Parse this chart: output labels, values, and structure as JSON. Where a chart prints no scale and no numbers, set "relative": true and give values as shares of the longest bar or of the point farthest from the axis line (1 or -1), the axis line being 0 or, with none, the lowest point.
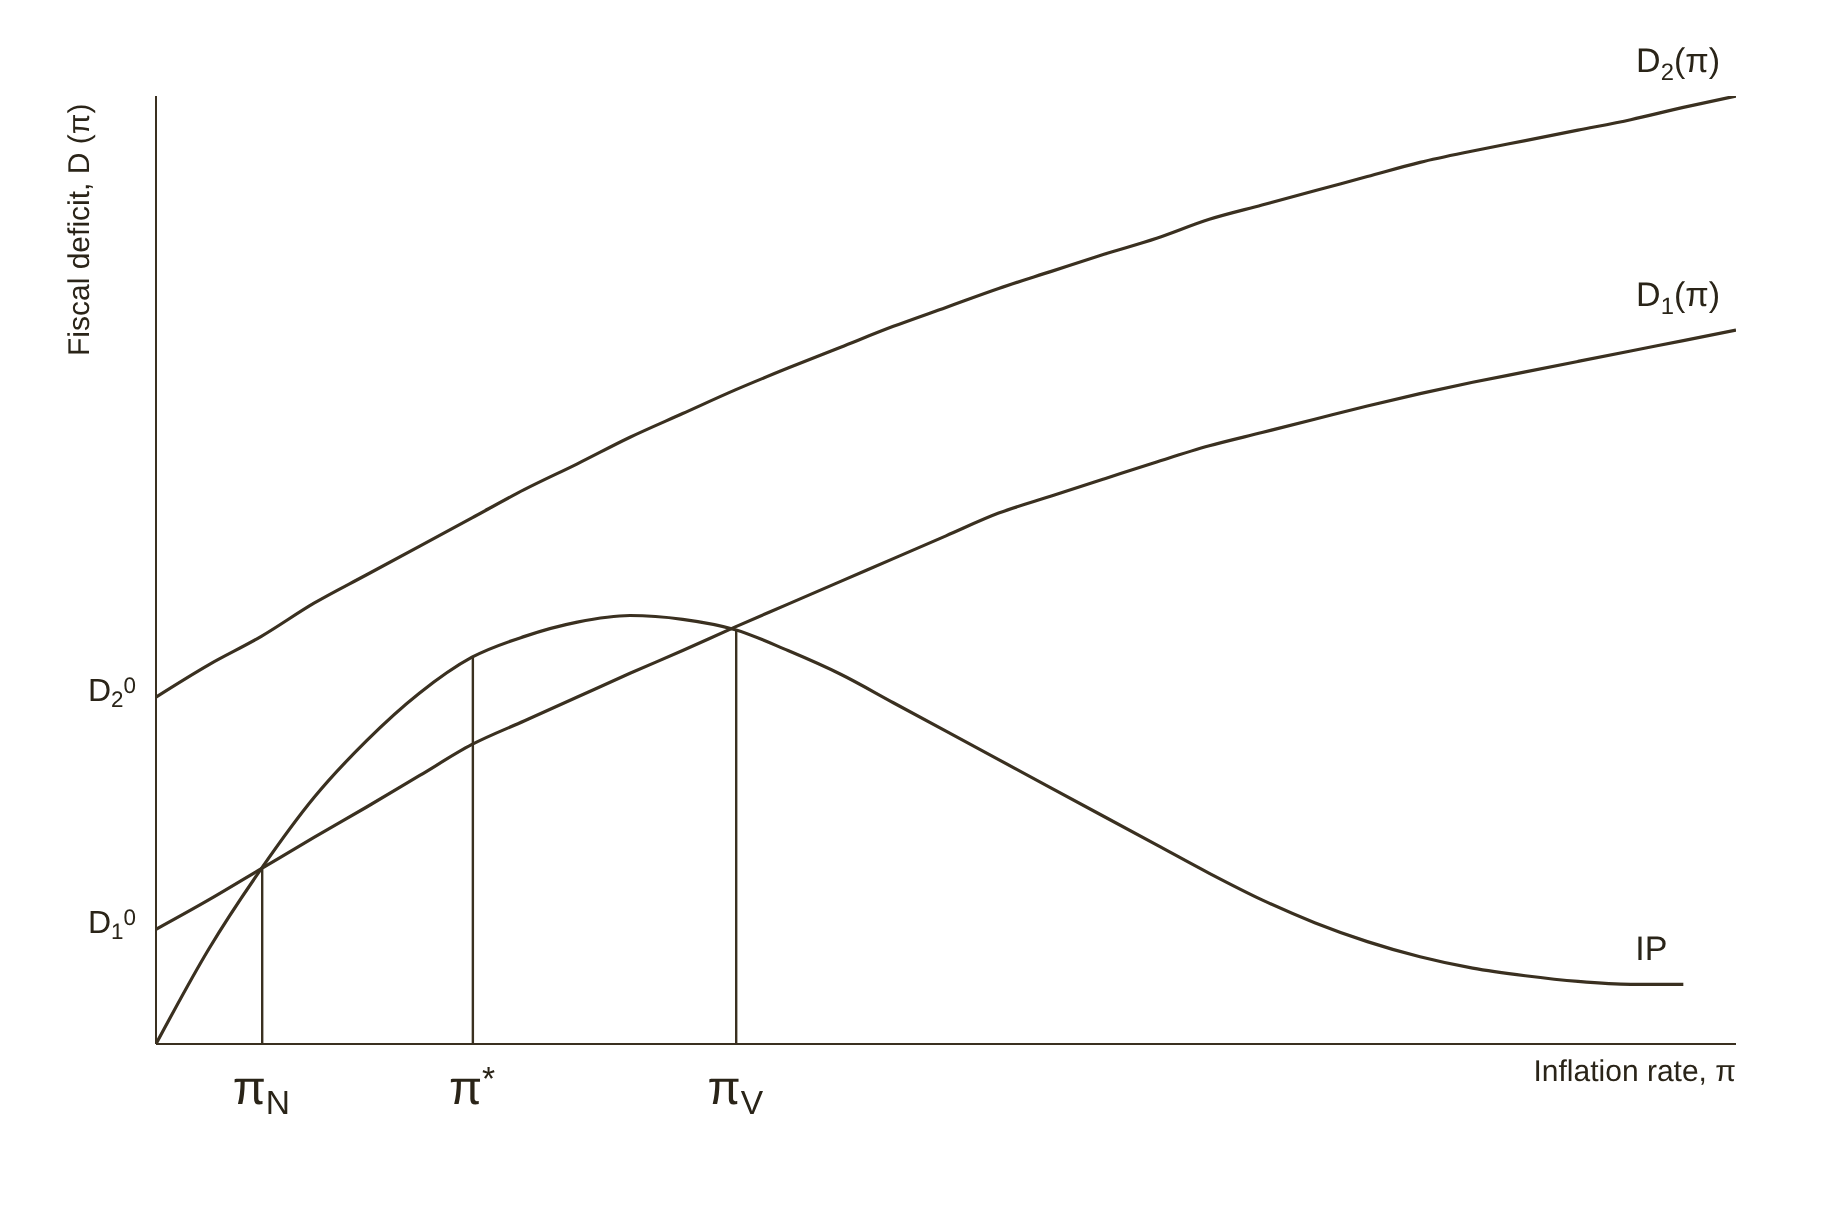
{
  "chart_data": {
    "type": "line",
    "relative": true,
    "xlabel": "Inflation rate, π",
    "ylabel": "Fiscal deficit, D (π)",
    "categories": [
      null,
      null,
      "π$_{N}$",
      null,
      null,
      null,
      "π$^{*}$",
      null,
      null,
      null,
      null,
      "π$_{V}$",
      null,
      null,
      null,
      null,
      null,
      null,
      null,
      null,
      null,
      null,
      null,
      null,
      null,
      null,
      null,
      null,
      null,
      null,
      null
    ],
    "grid": false,
    "legend": false,
    "marker": "none",
    "line_style": "solid",
    "series": [
      {
        "name": "D$_{2}$(π)",
        "color": "#3a3020",
        "values": [
          0.366,
          0.4,
          0.43,
          0.465,
          0.495,
          0.525,
          0.555,
          0.585,
          0.612,
          0.64,
          0.665,
          0.69,
          0.713,
          0.735,
          0.757,
          0.777,
          0.797,
          0.815,
          0.833,
          0.85,
          0.87,
          0.885,
          0.9,
          0.915,
          0.93,
          0.942,
          0.953,
          0.964,
          0.975,
          0.988,
          1
        ]
      },
      {
        "name": "D$_{1}$(π)",
        "color": "#3a3020",
        "values": [
          0.121,
          0.152,
          0.185,
          0.218,
          0.25,
          0.283,
          0.316,
          0.341,
          0.366,
          0.391,
          0.415,
          0.44,
          0.464,
          0.488,
          0.512,
          0.536,
          0.56,
          0.578,
          0.596,
          0.614,
          0.631,
          0.645,
          0.659,
          0.673,
          0.686,
          0.698,
          0.709,
          0.72,
          0.731,
          0.742,
          0.753
        ]
      },
      {
        "name": "IP",
        "color": "#3a3020",
        "values": [
          0,
          0.1,
          0.185,
          0.26,
          0.32,
          0.37,
          0.408,
          0.43,
          0.445,
          0.452,
          0.448,
          0.437,
          0.415,
          0.39,
          0.36,
          0.33,
          0.3,
          0.27,
          0.24,
          0.21,
          0.18,
          0.152,
          0.128,
          0.108,
          0.092,
          0.08,
          0.072,
          0.066,
          0.063,
          0.063,
          null
        ]
      },
      {
        "type": "bar",
        "color": "#3a3020",
        "values": [
          null,
          null,
          0.185,
          null,
          null,
          null,
          0.408,
          null,
          null,
          null,
          null,
          0.437,
          null,
          null,
          null,
          null,
          null,
          null,
          null,
          null,
          null,
          null,
          null,
          null,
          null,
          null,
          null,
          null,
          null,
          null,
          null
        ]
      }
    ],
    "annotations": [
      "D$_{2}$$^{0}$",
      "D$_{1}$$^{0}$"
    ]
  }
}
